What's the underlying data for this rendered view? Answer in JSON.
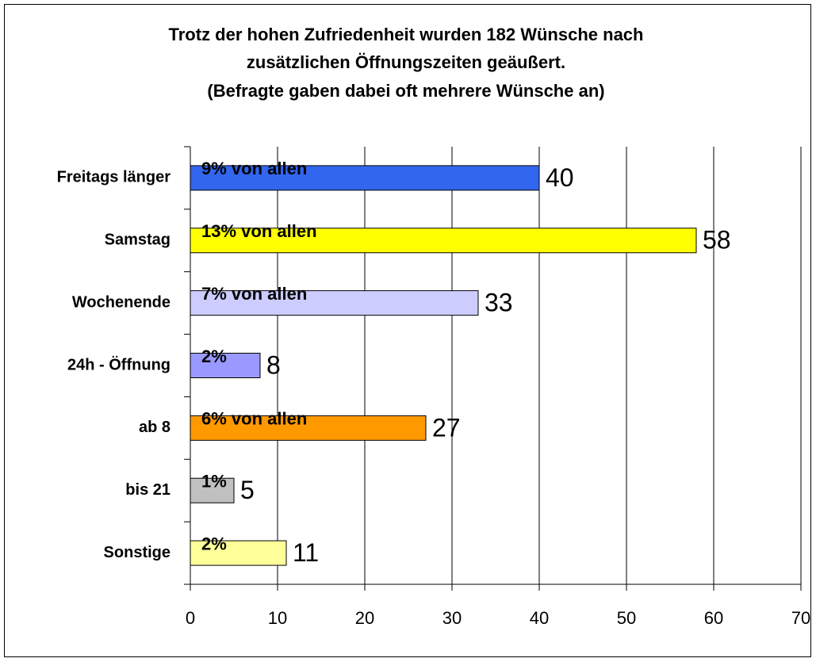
{
  "chart_data": {
    "type": "barh",
    "title": [
      "Trotz der hohen Zufriedenheit wurden 182 Wünsche nach",
      "zusätzlichen Öffnungszeiten geäußert.",
      "(Befragte gaben dabei oft mehrere Wünsche an)"
    ],
    "categories": [
      "Freitags länger",
      "Samstag",
      "Wochenende",
      "24h - Öffnung",
      "ab 8",
      "bis 21",
      "Sonstige"
    ],
    "values": [
      40,
      58,
      33,
      8,
      27,
      5,
      11
    ],
    "colors": [
      "#3366ee",
      "#ffff00",
      "#ccccff",
      "#9999ff",
      "#ff9900",
      "#c0c0c0",
      "#ffff99"
    ],
    "annotations": [
      "9% von allen",
      "13% von allen",
      "7% von allen",
      "2%",
      "6% von allen",
      "1%",
      "2%"
    ],
    "xlim": [
      0,
      70
    ],
    "xticks": [
      0,
      10,
      20,
      30,
      40,
      50,
      60,
      70
    ],
    "grid": true
  }
}
